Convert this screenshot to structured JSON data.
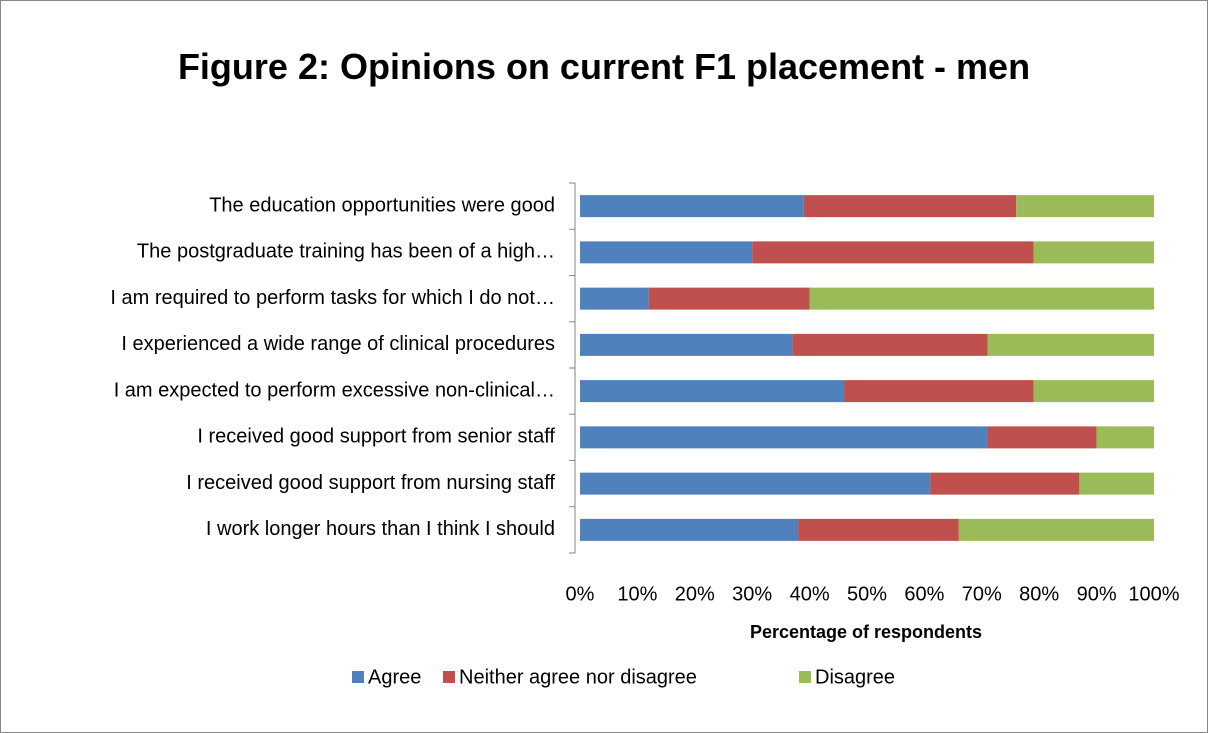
{
  "chart_data": {
    "type": "stacked_barh",
    "title": "Figure 2: Opinions on current F1 placement - men",
    "xlabel": "Percentage of respondents",
    "categories": [
      "The education opportunities were good",
      "The postgraduate training has been of a high…",
      "I am required to perform tasks for which I do not…",
      "I experienced a wide range of clinical procedures",
      "I am expected to perform excessive non-clinical…",
      "I received good support from senior staff",
      "I received good support from nursing staff",
      "I work longer hours than I think I should"
    ],
    "series": [
      {
        "name": "Agree",
        "color": "#4f81bd",
        "values": [
          39,
          30,
          12,
          37,
          46,
          71,
          61,
          38
        ]
      },
      {
        "name": "Neither agree nor disagree",
        "color": "#c0504d",
        "values": [
          37,
          49,
          28,
          34,
          33,
          19,
          26,
          28
        ]
      },
      {
        "name": "Disagree",
        "color": "#9bbb59",
        "values": [
          24,
          21,
          60,
          29,
          21,
          10,
          13,
          34
        ]
      }
    ],
    "xlim": [
      0,
      100
    ],
    "xticks": [
      {
        "value": 0,
        "label": "0%"
      },
      {
        "value": 10,
        "label": "10%"
      },
      {
        "value": 20,
        "label": "20%"
      },
      {
        "value": 30,
        "label": "30%"
      },
      {
        "value": 40,
        "label": "40%"
      },
      {
        "value": 50,
        "label": "50%"
      },
      {
        "value": 60,
        "label": "60%"
      },
      {
        "value": 70,
        "label": "70%"
      },
      {
        "value": 80,
        "label": "80%"
      },
      {
        "value": 90,
        "label": "90%"
      },
      {
        "value": 100,
        "label": "100%"
      }
    ],
    "legend": "bottom"
  }
}
